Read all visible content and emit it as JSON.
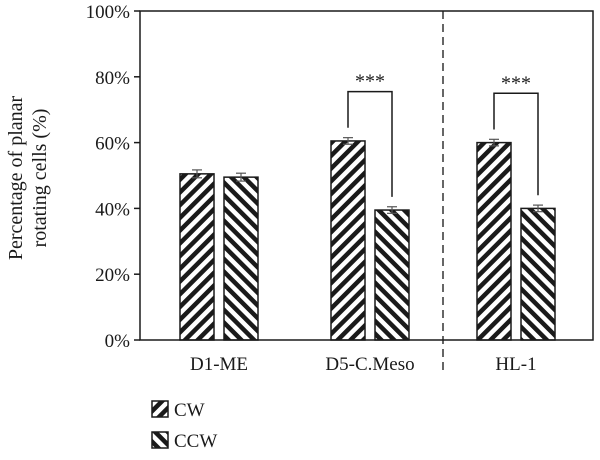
{
  "chart_data": {
    "type": "bar",
    "categories": [
      "D1-ME",
      "D5-C.Meso",
      "HL-1"
    ],
    "series": [
      {
        "name": "CW",
        "values": [
          50.5,
          60.5,
          60.0
        ],
        "errors": [
          1.2,
          1.0,
          1.0
        ]
      },
      {
        "name": "CCW",
        "values": [
          49.5,
          39.5,
          40.0
        ],
        "errors": [
          1.2,
          1.0,
          1.0
        ]
      }
    ],
    "ylabel": [
      "Percentage of planar",
      "rotating cells (%)"
    ],
    "xlabel": "",
    "ylim": [
      0,
      100
    ],
    "yticks": [
      "0%",
      "20%",
      "40%",
      "60%",
      "80%",
      "100%"
    ],
    "ytick_values": [
      0,
      20,
      40,
      60,
      80,
      100
    ],
    "grid": false,
    "legend_position": "bottom-left",
    "annotations": [
      {
        "category_index": 1,
        "text": "***"
      },
      {
        "category_index": 2,
        "text": "***"
      }
    ],
    "divider_after_category": 1
  }
}
